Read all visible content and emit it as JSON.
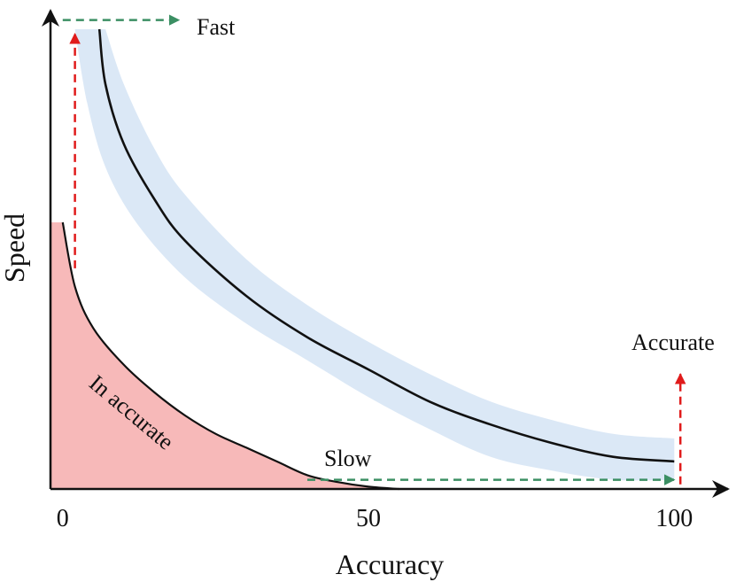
{
  "chart_data": {
    "type": "line",
    "xlabel": "Accuracy",
    "ylabel": "Speed",
    "x_ticks": [
      {
        "value": 0,
        "label": "0"
      },
      {
        "value": 50,
        "label": "50"
      },
      {
        "value": 100,
        "label": "100"
      }
    ],
    "xlim": [
      -2,
      103
    ],
    "ylim": [
      0,
      100
    ],
    "colors": {
      "curve": "#111111",
      "band": "#dbe8f6",
      "inaccurate_fill": "#f7b9b9",
      "red_arrow": "#e01b1b",
      "green_arrow": "#3b8f63",
      "axis": "#111111"
    },
    "band": {
      "upper": [
        [
          7,
          100
        ],
        [
          10,
          88
        ],
        [
          15,
          74
        ],
        [
          20,
          64
        ],
        [
          30,
          50
        ],
        [
          40,
          40
        ],
        [
          50,
          32
        ],
        [
          60,
          25
        ],
        [
          70,
          19
        ],
        [
          80,
          15
        ],
        [
          90,
          12
        ],
        [
          100,
          11
        ]
      ],
      "lower": [
        [
          2,
          100
        ],
        [
          4,
          84
        ],
        [
          7,
          70
        ],
        [
          12,
          58
        ],
        [
          20,
          46
        ],
        [
          30,
          36
        ],
        [
          40,
          28
        ],
        [
          50,
          20
        ],
        [
          60,
          13
        ],
        [
          70,
          7
        ],
        [
          80,
          4
        ],
        [
          90,
          2
        ],
        [
          100,
          2
        ]
      ]
    },
    "main_curve": [
      [
        6,
        100
      ],
      [
        7,
        88
      ],
      [
        10,
        75
      ],
      [
        15,
        63
      ],
      [
        20,
        54
      ],
      [
        30,
        42
      ],
      [
        40,
        33
      ],
      [
        50,
        26
      ],
      [
        60,
        19
      ],
      [
        70,
        14
      ],
      [
        80,
        10
      ],
      [
        90,
        7
      ],
      [
        100,
        6
      ]
    ],
    "inaccurate_curve": [
      [
        0,
        58
      ],
      [
        2,
        44
      ],
      [
        5,
        35
      ],
      [
        10,
        27
      ],
      [
        15,
        21
      ],
      [
        20,
        16
      ],
      [
        25,
        12
      ],
      [
        30,
        9
      ],
      [
        35,
        6
      ],
      [
        40,
        3
      ],
      [
        45,
        1.5
      ],
      [
        50,
        0.5
      ],
      [
        55,
        0
      ]
    ],
    "annotations": {
      "fast": "Fast",
      "slow": "Slow",
      "accurate": "Accurate",
      "inaccurate": "In accurate"
    },
    "arrows": {
      "fast_vertical": {
        "x": 2,
        "from_y": 48,
        "to_y": 99
      },
      "fast_horizontal": {
        "y": 102,
        "from_x": 0,
        "to_x": 19
      },
      "slow_horizontal": {
        "y": 2,
        "from_x": 40,
        "to_x": 100
      },
      "accurate_vertical": {
        "x": 101,
        "from_y": 1,
        "to_y": 25
      }
    }
  }
}
